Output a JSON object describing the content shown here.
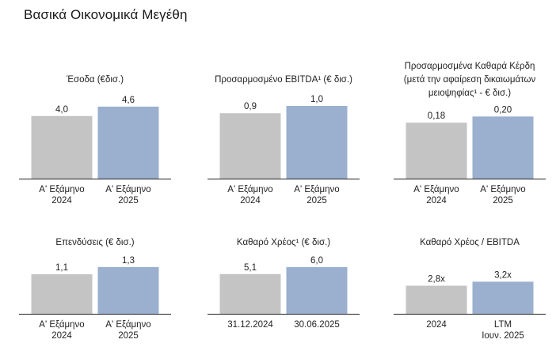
{
  "page": {
    "title": "Βασικά Οικονομικά Μεγέθη"
  },
  "colors": {
    "bar_2024": "#c4c4c4",
    "bar_2025": "#9bb0cf"
  },
  "chart_data": [
    {
      "type": "bar",
      "title": "Έσοδα (€δισ.)",
      "categories": [
        [
          "Α' Εξάμηνο",
          "2024"
        ],
        [
          "Α' Εξάμηνο",
          "2025"
        ]
      ],
      "values": [
        4.0,
        4.6
      ],
      "value_labels": [
        "4,0",
        "4,6"
      ],
      "ymax": 5.2
    },
    {
      "type": "bar",
      "title": "Προσαρμοσμένο EBITDA¹ (€ δισ.)",
      "categories": [
        [
          "Α' Εξάμηνο",
          "2024"
        ],
        [
          "Α' Εξάμηνο",
          "2025"
        ]
      ],
      "values": [
        0.9,
        1.0
      ],
      "value_labels": [
        "0,9",
        "1,0"
      ],
      "ymax": 1.12
    },
    {
      "type": "bar",
      "title": [
        "Προσαρμοσμένα Καθαρά Κέρδη",
        "(μετά την αφαίρεση δικαιωμάτων",
        "μειοψηφίας¹ - € δισ.)"
      ],
      "categories": [
        [
          "Α' Εξάμηνο",
          "2024"
        ],
        [
          "Α' Εξάμηνο",
          "2025"
        ]
      ],
      "values": [
        0.18,
        0.2
      ],
      "value_labels": [
        "0,18",
        "0,20"
      ],
      "ymax": 0.262
    },
    {
      "type": "bar",
      "title": "Επενδύσεις (€ δισ.)",
      "categories": [
        [
          "Α' Εξάμηνο",
          "2024"
        ],
        [
          "Α' Εξάμηνο",
          "2025"
        ]
      ],
      "values": [
        1.1,
        1.3
      ],
      "value_labels": [
        "1,1",
        "1,3"
      ],
      "ymax": 1.45
    },
    {
      "type": "bar",
      "title": "Καθαρό Χρέος¹ (€ δισ.)",
      "categories": [
        [
          "31.12.2024"
        ],
        [
          "30.06.2025"
        ]
      ],
      "values": [
        5.1,
        6.0
      ],
      "value_labels": [
        "5,1",
        "6,0"
      ],
      "ymax": 6.7
    },
    {
      "type": "bar",
      "title": "Καθαρό Χρέος / EBITDA",
      "categories": [
        [
          "2024"
        ],
        [
          "LTM",
          "Ιουν. 2025"
        ]
      ],
      "values": [
        2.8,
        3.2
      ],
      "value_labels": [
        "2,8x",
        "3,2x"
      ],
      "ymax": 5.2
    }
  ]
}
